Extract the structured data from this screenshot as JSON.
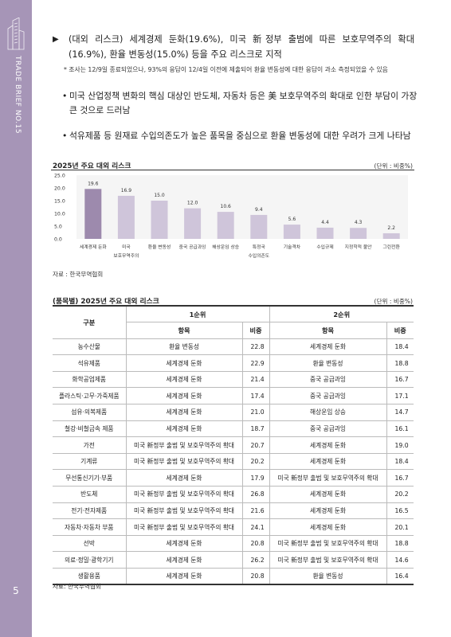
{
  "sidebar": {
    "brand": "TRADE BRIEF  NO.15",
    "page_number": "5"
  },
  "bullet_main": "(대외 리스크) 세계경제 둔화(19.6%), 미국 新정부 출범에 따른 보호무역주의 확대(16.9%), 환율 변동성(15.0%) 등을 주요 리스크로 지적",
  "note": "* 조사는 12/9일 종료되었으나, 93%의 응답이 12/4일 이전에 제출되어 환율 변동성에 대한 응답이 과소 측정되었을 수 있음",
  "bullets": [
    "미국 산업정책 변화의 핵심 대상인 반도체, 자동차 등은 美 보호무역주의 확대로 인한 부담이 가장 큰 것으로 드러남",
    "석유제품 등 원재료 수입의존도가 높은 품목을 중심으로 환율 변동성에 대한 우려가 크게 나타남"
  ],
  "chart_section": {
    "title": "2025년 주요 대외 리스크",
    "unit": "(단위 : 비중%)",
    "source": "자료 : 한국무역협회"
  },
  "chart_data": {
    "type": "bar",
    "categories": [
      [
        "세계경제 둔화"
      ],
      [
        "미국",
        "보호무역주의"
      ],
      [
        "환율 변동성"
      ],
      [
        "중국 공급과잉"
      ],
      [
        "해상운임 상승"
      ],
      [
        "특정국",
        "수입의존도"
      ],
      [
        "기술격차"
      ],
      [
        "수입규제"
      ],
      [
        "지정학적 불안"
      ],
      [
        "그린전환"
      ]
    ],
    "values": [
      19.6,
      16.9,
      15.0,
      12.0,
      10.6,
      9.4,
      5.6,
      4.4,
      4.3,
      2.2
    ],
    "value_labels": [
      "19.6",
      "16.9",
      "15.0",
      "12.0",
      "10.6",
      "9.4",
      "5.6",
      "4.4",
      "4.3",
      "2.2"
    ],
    "y_ticks": [
      "25.0",
      "20.0",
      "15.0",
      "10.0",
      "5.0",
      "0.0"
    ],
    "ylim": [
      0,
      25
    ],
    "colors": {
      "highlight": "#9d8aad",
      "bar": "#cfc5da",
      "plot_bg": "#f5f5f5"
    }
  },
  "table_section": {
    "title": "(품목별) 2025년 주요 대외 리스크",
    "unit": "(단위 : 비중%)",
    "source": "자료: 한국무역협회",
    "header": {
      "category": "구분",
      "rank1": "1순위",
      "rank2": "2순위",
      "item": "항목",
      "ratio": "비중"
    },
    "rows": [
      [
        "농수산물",
        "환율 변동성",
        "22.8",
        "세계경제 둔화",
        "18.4"
      ],
      [
        "석유제품",
        "세계경제 둔화",
        "22.9",
        "환율 변동성",
        "18.8"
      ],
      [
        "화학공업제품",
        "세계경제 둔화",
        "21.4",
        "중국 공급과잉",
        "16.7"
      ],
      [
        "플라스틱·고무·가죽제품",
        "세계경제 둔화",
        "17.4",
        "중국 공급과잉",
        "17.1"
      ],
      [
        "섬유·의복제품",
        "세계경제 둔화",
        "21.0",
        "해상운임 상승",
        "14.7"
      ],
      [
        "철강·비철금속 제품",
        "세계경제 둔화",
        "18.7",
        "중국 공급과잉",
        "16.1"
      ],
      [
        "가전",
        "미국 新정부 출범 및 보호무역주의 확대",
        "20.7",
        "세계경제 둔화",
        "19.0"
      ],
      [
        "기계류",
        "미국 新정부 출범 및 보호무역주의 확대",
        "20.2",
        "세계경제 둔화",
        "18.4"
      ],
      [
        "무선통신기기·부품",
        "세계경제 둔화",
        "17.9",
        "미국 新정부 출범 및 보호무역주의 확대",
        "16.7"
      ],
      [
        "반도체",
        "미국 新정부 출범 및 보호무역주의 확대",
        "26.8",
        "세계경제 둔화",
        "20.2"
      ],
      [
        "전기·전자제품",
        "미국 新정부 출범 및 보호무역주의 확대",
        "21.6",
        "세계경제 둔화",
        "16.5"
      ],
      [
        "자동차·자동차 부품",
        "미국 新정부 출범 및 보호무역주의 확대",
        "24.1",
        "세계경제 둔화",
        "20.1"
      ],
      [
        "선박",
        "세계경제 둔화",
        "20.8",
        "미국 新정부 출범 및 보호무역주의 확대",
        "18.8"
      ],
      [
        "의료·정밀·광학기기",
        "세계경제 둔화",
        "26.2",
        "미국 新정부 출범 및 보호무역주의 확대",
        "14.6"
      ],
      [
        "생활용품",
        "세계경제 둔화",
        "20.8",
        "환율 변동성",
        "16.4"
      ]
    ]
  }
}
